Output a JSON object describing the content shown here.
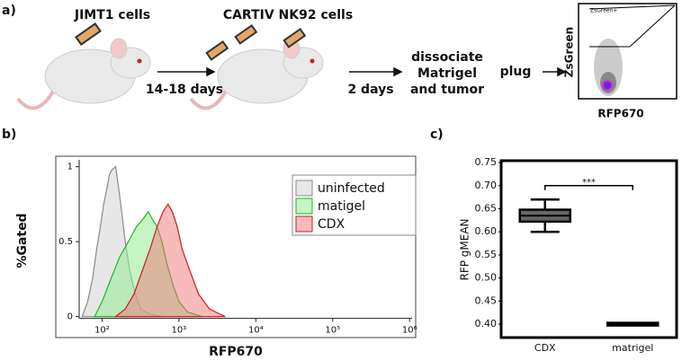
{
  "panel_labels": [
    "a)",
    "b)",
    "c)"
  ],
  "schematic": {
    "mouse1_label": "JIMT1 cells",
    "mouse2_label": "CARTIV NK92 cells",
    "step1": "14-18 days",
    "step2": "2 days",
    "process": [
      "dissociate",
      "Matrigel",
      "and tumor"
    ],
    "product": "plug",
    "flow_plot": {
      "y_label": "ZsGreen",
      "x_label": "RFP670",
      "gate_label": "ZsGreen+"
    }
  },
  "chart_data": [
    {
      "type": "area",
      "x_label": "RFP670",
      "y_label": "%Gated",
      "xscale": "log",
      "xlim": [
        25,
        1200000
      ],
      "ylim": [
        -0.14,
        1.07
      ],
      "xticks": [
        {
          "value": 100,
          "label": "10²"
        },
        {
          "value": 1000,
          "label": "10³"
        },
        {
          "value": 10000,
          "label": "10⁴"
        },
        {
          "value": 100000,
          "label": "10⁵"
        },
        {
          "value": 1000000,
          "label": "10⁶"
        }
      ],
      "yticks": [
        0,
        0.5,
        1
      ],
      "legend": "upper right",
      "series": [
        {
          "name": "uninfected",
          "color": "#8a8a8a",
          "fill": "rgba(225,225,225,0.8)",
          "x": [
            55,
            65,
            75,
            85,
            95,
            105,
            115,
            125,
            135,
            150,
            165,
            180,
            200,
            230,
            270,
            320,
            400,
            600
          ],
          "values": [
            0,
            0.1,
            0.25,
            0.45,
            0.6,
            0.75,
            0.85,
            0.95,
            0.98,
            1.0,
            0.85,
            0.7,
            0.5,
            0.3,
            0.15,
            0.05,
            0.02,
            0
          ]
        },
        {
          "name": "matigel",
          "color": "#1fb51f",
          "fill": "rgba(150,235,150,0.55)",
          "x": [
            80,
            100,
            130,
            170,
            220,
            280,
            340,
            400,
            450,
            520,
            600,
            700,
            850,
            1000,
            1300,
            2000
          ],
          "values": [
            0,
            0.1,
            0.25,
            0.4,
            0.5,
            0.6,
            0.65,
            0.7,
            0.65,
            0.6,
            0.5,
            0.35,
            0.2,
            0.1,
            0.03,
            0
          ]
        },
        {
          "name": "CDX",
          "color": "#c81e1e",
          "fill": "rgba(240,120,120,0.5)",
          "x": [
            150,
            200,
            260,
            330,
            420,
            520,
            620,
            720,
            820,
            950,
            1100,
            1400,
            1800,
            2500,
            4000
          ],
          "values": [
            0,
            0.05,
            0.15,
            0.3,
            0.45,
            0.6,
            0.7,
            0.75,
            0.7,
            0.6,
            0.45,
            0.3,
            0.15,
            0.05,
            0
          ]
        }
      ]
    },
    {
      "type": "box",
      "y_label": "RFP gMEAN",
      "categories": [
        "CDX",
        "matrigel"
      ],
      "min": [
        0.6,
        0.4
      ],
      "q1": [
        0.625,
        0.4
      ],
      "median": [
        0.635,
        0.4
      ],
      "q3": [
        0.645,
        0.4
      ],
      "max": [
        0.67,
        0.4
      ],
      "ylim": [
        0.371,
        0.754
      ],
      "yticks": [
        {
          "value": 0.4,
          "label": "0.40"
        },
        0.45,
        {
          "value": 0.5,
          "label": "0.50"
        },
        0.55,
        {
          "value": 0.6,
          "label": "0.60"
        },
        0.65,
        {
          "value": 0.7,
          "label": "0.70"
        },
        0.75
      ],
      "annotation": {
        "text": "***",
        "y": 0.7
      }
    }
  ]
}
